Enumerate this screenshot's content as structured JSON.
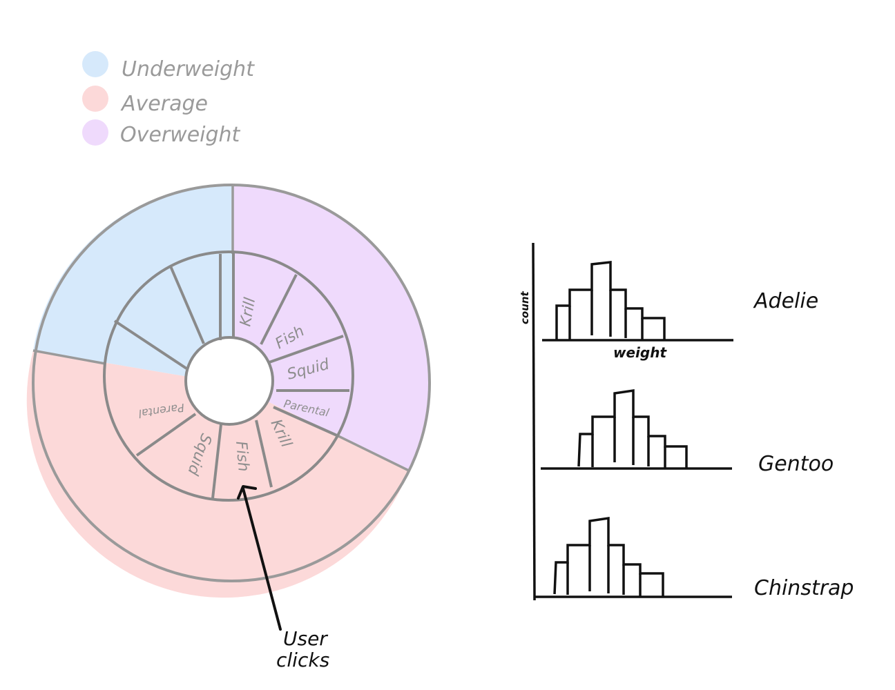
{
  "legend": [
    {
      "label": "Underweight",
      "color": "#d6e9fb"
    },
    {
      "label": "Average",
      "color": "#fcd9d9"
    },
    {
      "label": "Overweight",
      "color": "#efdafc"
    }
  ],
  "sunburst": {
    "outer_ring": [
      {
        "category": "Underweight",
        "color": "#d6e9fb"
      },
      {
        "category": "Overweight",
        "color": "#efdafc"
      },
      {
        "category": "Average",
        "color": "#fcd9d9"
      }
    ],
    "inner_ring_labels": {
      "overweight": [
        "Krill",
        "Fish",
        "Squid",
        "Parental"
      ],
      "average": [
        "Krill",
        "Fish",
        "Squid",
        "Parental"
      ]
    },
    "ring_stroke_color": "#9a9a9a"
  },
  "annotation": {
    "line1": "User",
    "line2": "clicks"
  },
  "histograms": {
    "y_label": "count",
    "x_label": "weight",
    "species": [
      "Adelie",
      "Gentoo",
      "Chinstrap"
    ],
    "color": "#111111"
  }
}
